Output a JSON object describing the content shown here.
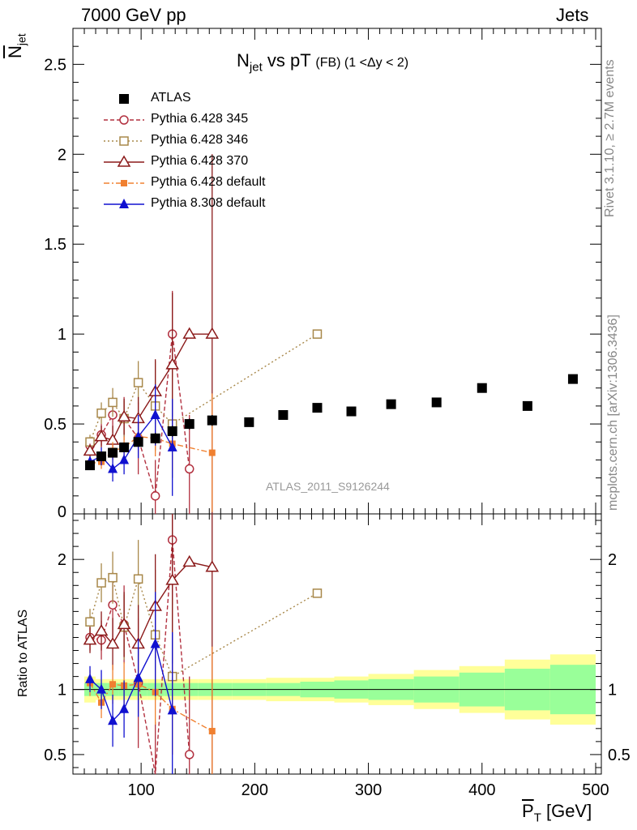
{
  "header": {
    "left": "7000 GeV pp",
    "right": "Jets"
  },
  "title": {
    "main": "N",
    "sub": "jet",
    "rest": " vs pT",
    "small": "(FB) (1 <Δy < 2)"
  },
  "side_labels": {
    "rivet": "Rivet 3.1.10, ≥ 2.7M events",
    "mcplots": "mcplots.cern.ch [arXiv:1306.3436]"
  },
  "analysis_label": "ATLAS_2011_S9126244",
  "ylabel_top": {
    "main": "N",
    "sub": "jet"
  },
  "ylabel_bottom": "Ratio to ATLAS",
  "xlabel": {
    "main": "P",
    "sub": "T",
    "unit": " [GeV]"
  },
  "legend": [
    {
      "label": "ATLAS",
      "color": "#000000",
      "marker": "square-filled",
      "line": "none"
    },
    {
      "label": "Pythia 6.428 345",
      "color": "#b2303f",
      "marker": "circle-open",
      "line": "dashed"
    },
    {
      "label": "Pythia 6.428 346",
      "color": "#a8884a",
      "marker": "square-open",
      "line": "dotted"
    },
    {
      "label": "Pythia 6.428 370",
      "color": "#8b1a1a",
      "marker": "triangle-open",
      "line": "solid"
    },
    {
      "label": "Pythia 6.428 default",
      "color": "#f08030",
      "marker": "square-filled-small",
      "line": "dashdot"
    },
    {
      "label": "Pythia 8.308 default",
      "color": "#1010d0",
      "marker": "triangle-filled",
      "line": "solid"
    }
  ],
  "chart_data": [
    {
      "type": "scatter",
      "panel": "main",
      "xlim": [
        40,
        505
      ],
      "ylim": [
        0,
        2.7
      ],
      "x_ticks": [
        100,
        200,
        300,
        400,
        500
      ],
      "y_ticks": [
        0.5,
        1,
        1.5,
        2,
        2.5
      ],
      "y_tick_labels": [
        "0.5",
        "1",
        "1.5",
        "2",
        "2.5"
      ],
      "series": [
        {
          "name": "ATLAS",
          "x": [
            55,
            65,
            75,
            85,
            97.5,
            112.5,
            127.5,
            142.5,
            162.5,
            195,
            225,
            255,
            285,
            320,
            360,
            400,
            440,
            480
          ],
          "y": [
            0.27,
            0.32,
            0.34,
            0.37,
            0.4,
            0.42,
            0.46,
            0.5,
            0.52,
            0.51,
            0.55,
            0.59,
            0.57,
            0.61,
            0.62,
            0.7,
            0.6,
            0.75
          ],
          "err": [
            0.02,
            0.02,
            0.02,
            0.02,
            0.02,
            0.03,
            0.03,
            0.03,
            0.03,
            0.02,
            0.02,
            0.02,
            0.02,
            0.02,
            0.02,
            0.02,
            0.02,
            0.02
          ]
        },
        {
          "name": "Pythia 6.428 345",
          "x": [
            55,
            65,
            75,
            85,
            97.5,
            112.5,
            127.5,
            142.5
          ],
          "y": [
            0.38,
            0.44,
            0.55,
            0.53,
            0.42,
            0.1,
            1.0,
            0.25
          ],
          "err": [
            0.04,
            0.06,
            0.1,
            0.12,
            0.2,
            0.2,
            0.24,
            0.3
          ]
        },
        {
          "name": "Pythia 6.428 346",
          "x": [
            55,
            65,
            75,
            85,
            97.5,
            112.5,
            127.5,
            255
          ],
          "y": [
            0.4,
            0.56,
            0.62,
            0.53,
            0.73,
            0.6,
            0.5,
            1.0
          ],
          "err": [
            0.04,
            0.06,
            0.08,
            0.1,
            0.12,
            0.25,
            0.3,
            0.0
          ]
        },
        {
          "name": "Pythia 6.428 370",
          "x": [
            55,
            65,
            75,
            85,
            97.5,
            112.5,
            127.5,
            142.5,
            162.5
          ],
          "y": [
            0.35,
            0.43,
            0.41,
            0.54,
            0.53,
            0.68,
            0.83,
            1.0,
            1.0
          ],
          "err": [
            0.04,
            0.06,
            0.08,
            0.1,
            0.12,
            0.18,
            0.4,
            0.0,
            1.0
          ]
        },
        {
          "name": "Pythia 6.428 default",
          "x": [
            55,
            65,
            75,
            85,
            97.5,
            112.5,
            127.5,
            162.5
          ],
          "y": [
            0.28,
            0.29,
            0.35,
            0.37,
            0.43,
            0.42,
            0.39,
            0.34
          ],
          "err": [
            0.03,
            0.04,
            0.05,
            0.06,
            0.08,
            0.1,
            0.15,
            0.33
          ]
        },
        {
          "name": "Pythia 8.308 default",
          "x": [
            55,
            65,
            75,
            85,
            97.5,
            112.5,
            127.5
          ],
          "y": [
            0.29,
            0.32,
            0.25,
            0.3,
            0.43,
            0.55,
            0.37
          ],
          "err": [
            0.03,
            0.05,
            0.07,
            0.08,
            0.12,
            0.17,
            0.27
          ]
        }
      ]
    },
    {
      "type": "scatter",
      "panel": "ratio",
      "xlim": [
        40,
        505
      ],
      "ylim": [
        0.35,
        2.35
      ],
      "y_ticks": [
        0.5,
        1,
        2
      ],
      "y_tick_labels": [
        "0.5",
        "1",
        "2"
      ],
      "x_tick_labels": [
        "100",
        "200",
        "300",
        "400",
        "500"
      ],
      "uncertainty_bands": {
        "x_edges": [
          50,
          60,
          70,
          80,
          90,
          105,
          120,
          135,
          150,
          180,
          210,
          240,
          270,
          300,
          340,
          380,
          420,
          460,
          500
        ],
        "stat": [
          0.05,
          0.05,
          0.05,
          0.05,
          0.05,
          0.05,
          0.05,
          0.05,
          0.05,
          0.05,
          0.05,
          0.06,
          0.07,
          0.08,
          0.1,
          0.13,
          0.16,
          0.19
        ],
        "total": [
          0.1,
          0.08,
          0.08,
          0.08,
          0.08,
          0.08,
          0.08,
          0.08,
          0.08,
          0.08,
          0.09,
          0.09,
          0.1,
          0.12,
          0.15,
          0.18,
          0.23,
          0.27
        ],
        "stat_color": "#99ff99",
        "total_color": "#ffff99"
      },
      "series": [
        {
          "name": "Pythia 6.428 345",
          "x": [
            55,
            65,
            75,
            85,
            97.5,
            112.5,
            127.5,
            142.5
          ],
          "y": [
            1.4,
            1.38,
            1.65,
            1.5,
            1.05,
            0.25,
            2.15,
            0.5
          ],
          "err": [
            0.1,
            0.15,
            0.25,
            0.3,
            0.5,
            0.5,
            0.5,
            0.6
          ]
        },
        {
          "name": "Pythia 6.428 346",
          "x": [
            55,
            65,
            75,
            85,
            97.5,
            112.5,
            127.5,
            255
          ],
          "y": [
            1.52,
            1.82,
            1.86,
            1.48,
            1.85,
            1.42,
            1.1,
            1.74
          ],
          "err": [
            0.1,
            0.15,
            0.2,
            0.25,
            0.3,
            0.5,
            0.6,
            0.0
          ]
        },
        {
          "name": "Pythia 6.428 370",
          "x": [
            55,
            65,
            75,
            85,
            97.5,
            112.5,
            127.5,
            142.5,
            162.5
          ],
          "y": [
            1.38,
            1.45,
            1.35,
            1.5,
            1.35,
            1.64,
            1.84,
            1.98,
            1.94
          ],
          "err": [
            0.1,
            0.15,
            0.2,
            0.25,
            0.3,
            0.4,
            0.8,
            0.0,
            1.9
          ]
        },
        {
          "name": "Pythia 6.428 default",
          "x": [
            55,
            65,
            75,
            85,
            97.5,
            112.5,
            127.5,
            162.5
          ],
          "y": [
            1.05,
            0.9,
            1.04,
            1.03,
            1.04,
            0.98,
            0.85,
            0.68
          ],
          "err": [
            0.1,
            0.12,
            0.15,
            0.18,
            0.22,
            0.25,
            0.35,
            0.65
          ]
        },
        {
          "name": "Pythia 8.308 default",
          "x": [
            55,
            65,
            75,
            85,
            97.5,
            112.5,
            127.5
          ],
          "y": [
            1.08,
            1.0,
            0.76,
            0.85,
            1.09,
            1.35,
            0.84
          ],
          "err": [
            0.1,
            0.15,
            0.2,
            0.22,
            0.3,
            0.4,
            0.6
          ]
        }
      ]
    }
  ]
}
